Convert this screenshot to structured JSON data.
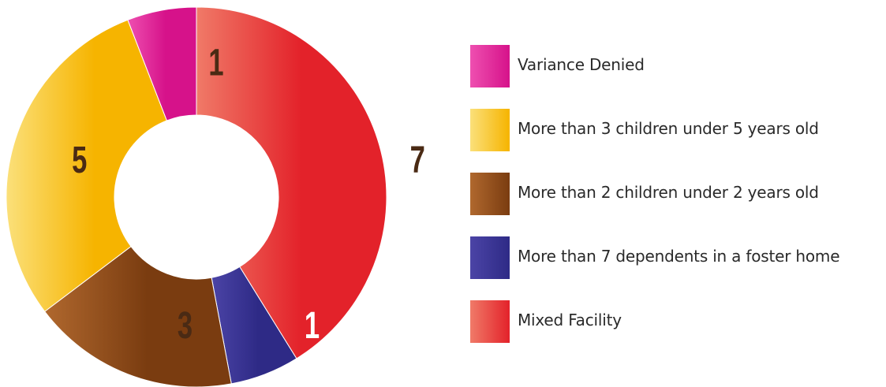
{
  "chart_data": {
    "type": "pie",
    "variant": "donut",
    "title": "",
    "slices": [
      {
        "label": "Mixed Facility",
        "value": 7,
        "color": "#e3222a",
        "gradient_start": "#f07a68",
        "text_color": "#4a2a14"
      },
      {
        "label": "More than 7 dependents in a foster home",
        "value": 1,
        "color": "#2e2a86",
        "gradient_start": "#4b44a6",
        "text_color": "#ffffff"
      },
      {
        "label": "More than 2 children under 2 years old",
        "value": 3,
        "color": "#7a3c10",
        "gradient_start": "#b0682e",
        "text_color": "#4a2a14"
      },
      {
        "label": "More than 3 children under 5 years old",
        "value": 5,
        "color": "#f6b400",
        "gradient_start": "#fbe07a",
        "text_color": "#4a2a14"
      },
      {
        "label": "Variance Denied",
        "value": 1,
        "color": "#d6128a",
        "gradient_start": "#ee4fb0",
        "text_color": "#4a2a14"
      }
    ],
    "legend": {
      "placement": "right",
      "order": [
        "Variance Denied",
        "More than 3 children under 5 years old",
        "More than 2 children under 2 years old",
        "More than 7 dependents in a foster home",
        "Mixed Facility"
      ]
    }
  }
}
